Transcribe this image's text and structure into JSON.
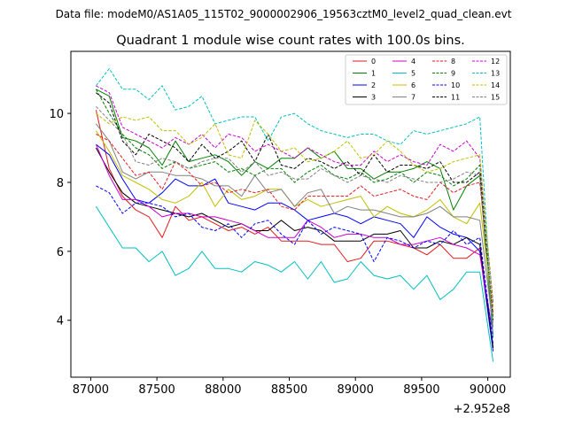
{
  "chart_data": {
    "type": "line",
    "suptitle": "Data file: modeM0/AS1A05_115T02_9000002906_19563cztM0_level2_quad_clean.evt",
    "title": "Quadrant 1 module wise count rates with 100.0s bins.",
    "xlabel": "",
    "ylabel": "",
    "x_offset_label": "+2.952e8",
    "xlim": [
      86850,
      90170
    ],
    "ylim": [
      2.35,
      11.8
    ],
    "x_ticks": [
      87000,
      87500,
      88000,
      88500,
      89000,
      89500,
      90000
    ],
    "x_tick_labels": [
      "87000",
      "87500",
      "88000",
      "88500",
      "89000",
      "89500",
      "90000"
    ],
    "y_ticks": [
      4,
      6,
      8,
      10
    ],
    "y_tick_labels": [
      "4",
      "6",
      "8",
      "10"
    ],
    "legend_position": "top-right",
    "x": [
      87040,
      87140,
      87240,
      87340,
      87440,
      87540,
      87640,
      87740,
      87840,
      87940,
      88040,
      88140,
      88240,
      88340,
      88440,
      88540,
      88640,
      88740,
      88840,
      88940,
      89040,
      89140,
      89240,
      89340,
      89440,
      89540,
      89640,
      89740,
      89840,
      89940,
      90040
    ],
    "series": [
      {
        "name": "0",
        "color": "#e31a1c",
        "dash": "solid",
        "values": [
          10.1,
          8.4,
          7.6,
          7.2,
          7.0,
          6.4,
          7.3,
          6.9,
          7.0,
          6.8,
          6.6,
          6.7,
          6.5,
          6.7,
          6.3,
          6.3,
          6.3,
          6.2,
          6.2,
          5.7,
          5.8,
          6.3,
          6.3,
          6.2,
          6.1,
          5.9,
          6.2,
          5.8,
          5.8,
          6.1,
          3.2
        ]
      },
      {
        "name": "1",
        "color": "#008000",
        "dash": "solid",
        "values": [
          10.7,
          10.5,
          9.3,
          9.2,
          9.0,
          8.5,
          9.2,
          8.6,
          8.7,
          8.8,
          8.6,
          8.2,
          8.6,
          8.4,
          8.7,
          8.7,
          9.0,
          8.7,
          8.9,
          8.4,
          8.4,
          8.1,
          8.3,
          8.3,
          8.4,
          8.6,
          8.4,
          7.2,
          7.9,
          8.2,
          3.5
        ]
      },
      {
        "name": "2",
        "color": "#0000ff",
        "dash": "solid",
        "values": [
          9.1,
          8.8,
          8.1,
          7.5,
          7.4,
          7.7,
          8.1,
          7.9,
          7.9,
          8.1,
          7.4,
          7.3,
          7.2,
          7.4,
          7.4,
          7.2,
          6.9,
          7.0,
          7.1,
          7.0,
          6.8,
          7.0,
          6.9,
          6.8,
          6.4,
          7.0,
          6.7,
          6.5,
          6.4,
          6.0,
          3.1
        ]
      },
      {
        "name": "3",
        "color": "#000000",
        "dash": "solid",
        "values": [
          9.0,
          8.3,
          7.7,
          7.4,
          7.3,
          7.2,
          7.1,
          7.0,
          7.1,
          6.9,
          6.7,
          6.8,
          6.6,
          6.6,
          6.9,
          6.6,
          6.7,
          6.6,
          6.3,
          6.3,
          6.3,
          6.5,
          6.5,
          6.6,
          6.1,
          6.1,
          6.3,
          6.2,
          6.4,
          6.2,
          3.2
        ]
      },
      {
        "name": "4",
        "color": "#cc00cc",
        "dash": "solid",
        "values": [
          9.1,
          8.2,
          7.5,
          7.5,
          7.3,
          7.0,
          7.1,
          7.1,
          7.0,
          7.0,
          6.9,
          6.8,
          6.6,
          6.4,
          6.4,
          6.4,
          6.9,
          6.7,
          6.4,
          6.5,
          6.5,
          6.4,
          6.4,
          6.2,
          6.2,
          6.3,
          6.4,
          6.2,
          6.1,
          5.9,
          3.6
        ]
      },
      {
        "name": "5",
        "color": "#00bfbf",
        "dash": "solid",
        "values": [
          7.3,
          6.7,
          6.1,
          6.1,
          5.7,
          6.0,
          5.3,
          5.5,
          6.0,
          5.5,
          5.5,
          5.4,
          5.7,
          5.6,
          5.4,
          5.7,
          5.2,
          5.7,
          5.1,
          5.2,
          5.7,
          5.3,
          5.2,
          5.3,
          4.9,
          5.3,
          4.6,
          4.9,
          5.4,
          5.4,
          2.8
        ]
      },
      {
        "name": "6",
        "color": "#bfbf00",
        "dash": "solid",
        "values": [
          9.5,
          8.9,
          8.2,
          8.0,
          7.8,
          7.5,
          7.4,
          7.6,
          8.0,
          7.3,
          7.8,
          7.5,
          7.6,
          7.8,
          7.8,
          7.3,
          7.5,
          7.3,
          7.4,
          7.5,
          7.6,
          7.0,
          7.3,
          7.1,
          7.0,
          7.2,
          7.5,
          7.0,
          6.8,
          7.4,
          4.1
        ]
      },
      {
        "name": "7",
        "color": "#808080",
        "dash": "solid",
        "values": [
          9.7,
          9.2,
          8.3,
          8.1,
          8.3,
          8.3,
          8.2,
          8.2,
          8.1,
          7.9,
          7.9,
          7.6,
          8.2,
          7.7,
          7.8,
          7.3,
          7.7,
          7.8,
          7.1,
          7.3,
          7.2,
          7.2,
          7.1,
          7.0,
          7.0,
          7.1,
          7.3,
          7.0,
          7.0,
          6.9,
          3.8
        ]
      },
      {
        "name": "8",
        "color": "#e31a1c",
        "dash": "dashed",
        "values": [
          9.4,
          9.2,
          8.7,
          8.2,
          8.3,
          7.8,
          8.6,
          8.3,
          7.9,
          8.0,
          7.7,
          7.8,
          7.7,
          7.8,
          7.3,
          7.2,
          7.6,
          7.6,
          7.6,
          7.6,
          7.9,
          7.6,
          7.7,
          7.8,
          7.6,
          7.5,
          8.0,
          7.7,
          7.9,
          8.0,
          4.2
        ]
      },
      {
        "name": "9",
        "color": "#008000",
        "dash": "dashed",
        "values": [
          10.7,
          10.0,
          9.4,
          9.0,
          8.8,
          8.4,
          8.6,
          8.4,
          8.5,
          8.6,
          8.3,
          8.4,
          8.2,
          8.4,
          8.4,
          8.0,
          8.3,
          8.5,
          8.2,
          8.1,
          8.3,
          8.0,
          8.1,
          8.3,
          8.0,
          8.3,
          8.2,
          7.9,
          8.1,
          8.5,
          4.5
        ]
      },
      {
        "name": "10",
        "color": "#0000ff",
        "dash": "dashed",
        "values": [
          7.9,
          7.7,
          7.1,
          7.4,
          7.4,
          7.3,
          7.0,
          7.1,
          6.7,
          6.6,
          6.8,
          6.4,
          6.8,
          6.9,
          6.5,
          6.2,
          6.9,
          6.5,
          6.7,
          6.6,
          6.5,
          5.7,
          6.4,
          6.3,
          6.1,
          6.3,
          6.2,
          6.6,
          6.2,
          6.4,
          3.3
        ]
      },
      {
        "name": "11",
        "color": "#000000",
        "dash": "dashed",
        "values": [
          10.6,
          10.3,
          9.2,
          8.8,
          9.4,
          9.2,
          9.0,
          8.6,
          9.1,
          8.7,
          8.9,
          9.2,
          8.6,
          9.4,
          8.5,
          8.4,
          8.7,
          8.6,
          8.4,
          8.6,
          8.2,
          8.8,
          8.3,
          8.5,
          8.5,
          8.4,
          8.6,
          8.0,
          8.0,
          8.3,
          4.0
        ]
      },
      {
        "name": "12",
        "color": "#cc00cc",
        "dash": "dashed",
        "values": [
          10.8,
          10.6,
          9.6,
          9.4,
          9.2,
          9.0,
          9.3,
          9.1,
          9.4,
          9.0,
          9.4,
          9.3,
          8.9,
          9.1,
          8.9,
          8.7,
          9.0,
          8.8,
          8.6,
          8.5,
          8.5,
          8.9,
          8.6,
          8.8,
          8.6,
          8.5,
          9.1,
          8.9,
          9.2,
          8.7,
          4.4
        ]
      },
      {
        "name": "13",
        "color": "#00bfbf",
        "dash": "dashed",
        "values": [
          10.8,
          11.3,
          10.7,
          10.7,
          10.4,
          10.8,
          10.1,
          10.2,
          10.5,
          9.7,
          9.8,
          9.9,
          9.9,
          9.2,
          9.9,
          10.0,
          9.7,
          9.5,
          9.4,
          9.3,
          9.4,
          9.4,
          9.2,
          9.1,
          9.5,
          9.4,
          9.5,
          9.6,
          9.7,
          9.9,
          3.5
        ]
      },
      {
        "name": "14",
        "color": "#bfbf00",
        "dash": "dashed",
        "values": [
          10.0,
          9.7,
          9.9,
          9.8,
          9.9,
          9.5,
          9.5,
          9.1,
          9.3,
          9.7,
          8.8,
          8.7,
          9.8,
          9.4,
          8.9,
          9.0,
          8.6,
          8.7,
          8.9,
          9.2,
          8.7,
          8.8,
          9.2,
          8.9,
          8.5,
          8.3,
          8.4,
          8.6,
          8.7,
          8.8,
          4.3
        ]
      },
      {
        "name": "15",
        "color": "#808080",
        "dash": "dashed",
        "values": [
          10.2,
          9.8,
          9.4,
          8.6,
          8.5,
          8.7,
          8.6,
          8.4,
          8.6,
          8.7,
          8.7,
          8.3,
          8.6,
          8.2,
          8.3,
          8.1,
          8.1,
          8.4,
          8.2,
          8.0,
          8.2,
          8.1,
          8.0,
          8.2,
          8.1,
          8.0,
          8.0,
          8.1,
          8.3,
          8.2,
          3.9
        ]
      }
    ]
  }
}
